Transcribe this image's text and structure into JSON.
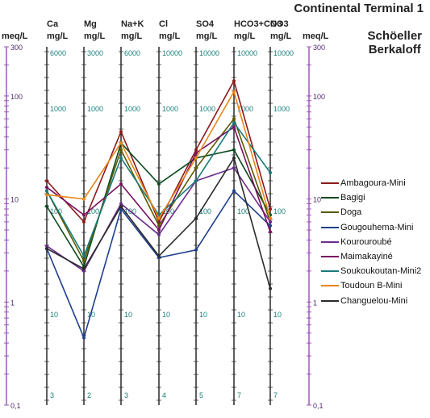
{
  "title": "Continental Terminal 1",
  "method_lines": [
    "Schöeller",
    "Berkaloff"
  ],
  "meq_label": "meq/L",
  "meq_ticks": [
    "300",
    "100",
    "10",
    "1",
    "0,1"
  ],
  "axes": [
    {
      "key": "Ca",
      "name": "Ca",
      "unit": "mg/L",
      "ticks": [
        "6000",
        "1000",
        "100",
        "10",
        "3"
      ]
    },
    {
      "key": "Mg",
      "name": "Mg",
      "unit": "mg/L",
      "ticks": [
        "3000",
        "1000",
        "100",
        "10",
        "2"
      ]
    },
    {
      "key": "NaK",
      "name": "Na+K",
      "unit": "mg/L",
      "ticks": [
        "6000",
        "1000",
        "100",
        "10",
        "3"
      ]
    },
    {
      "key": "Cl",
      "name": "Cl",
      "unit": "mg/L",
      "ticks": [
        "10000",
        "1000",
        "100",
        "10",
        "4"
      ]
    },
    {
      "key": "SO4",
      "name": "SO4",
      "unit": "mg/L",
      "ticks": [
        "10000",
        "1000",
        "100",
        "10",
        "5"
      ]
    },
    {
      "key": "HCO3",
      "name": "HCO3+CO3",
      "unit": "mg/L",
      "ticks": [
        "10000",
        "1000",
        "100",
        "10",
        "7"
      ]
    },
    {
      "key": "NO3",
      "name": "NO3",
      "unit": "mg/L",
      "ticks": [
        "10000",
        "1000",
        "100",
        "10",
        "7"
      ]
    }
  ],
  "colors": {
    "meq_axis": "#9b59b6",
    "axis_line": "#1a1a1a",
    "tick_label": "#1b7f7a"
  },
  "chart_data": {
    "type": "line",
    "scale": "log",
    "ylabel": "meq/L",
    "ylim": [
      0.1,
      300
    ],
    "categories": [
      "Ca",
      "Mg",
      "Na+K",
      "Cl",
      "SO4",
      "HCO3+CO3",
      "NO3"
    ],
    "series": [
      {
        "name": "Ambagoura-Mini",
        "color": "#8b1a1a",
        "values": [
          15,
          6,
          45,
          6,
          30,
          140,
          8
        ]
      },
      {
        "name": "Bagigi",
        "color": "#0b4a1e",
        "values": [
          8.5,
          2.2,
          35,
          14,
          25,
          30,
          7
        ]
      },
      {
        "name": "Doga",
        "color": "#5a5a00",
        "values": [
          12,
          2.5,
          30,
          5.5,
          20,
          60,
          6
        ]
      },
      {
        "name": "Gougouhema-Mini",
        "color": "#1f3f8f",
        "values": [
          3.3,
          0.45,
          8,
          2.7,
          3.2,
          12,
          5.5
        ]
      },
      {
        "name": "Kourouroubé",
        "color": "#6b2b8b",
        "values": [
          3.5,
          2,
          9,
          4.5,
          15,
          20,
          6
        ]
      },
      {
        "name": "Maimakayiné",
        "color": "#7a1060",
        "values": [
          13,
          7,
          14,
          5,
          28,
          50,
          4.8
        ]
      },
      {
        "name": "Soukoukoutan-Mini2",
        "color": "#1a7a7a",
        "values": [
          12,
          2.8,
          25,
          7,
          15,
          55,
          18
        ]
      },
      {
        "name": "Toudoun B-Mini",
        "color": "#e8861a",
        "values": [
          11,
          10,
          35,
          6.5,
          25,
          110,
          6.5
        ]
      },
      {
        "name": "Changuelou-Mini",
        "color": "#2a2a2a",
        "values": [
          3.3,
          2.1,
          8.5,
          2.8,
          6.5,
          25,
          1.35
        ]
      }
    ]
  }
}
